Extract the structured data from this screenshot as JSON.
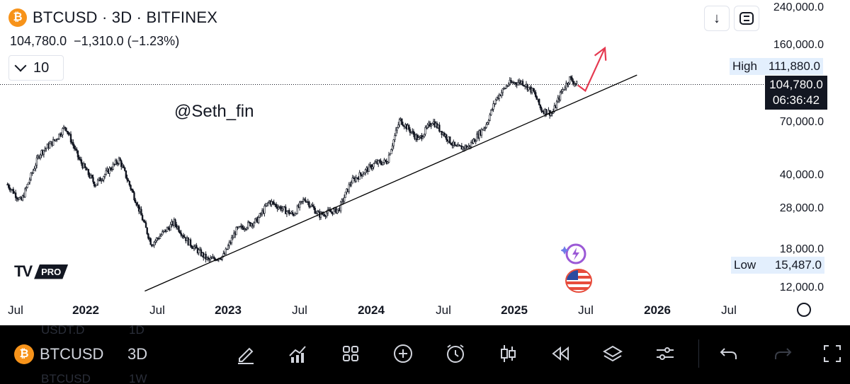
{
  "header": {
    "coin_symbol": "₿",
    "title": "BTCUSD · 3D · BITFINEX",
    "last_price": "104,780.0",
    "change": "−1,310.0 (−1.23%)",
    "interval_count": "10",
    "watermark": "@Seth_fin"
  },
  "top_buttons": {
    "download_icon": "↓",
    "fullscreen_icon": "fullscreen-icon"
  },
  "price_axis": {
    "labels": [
      "240,000.0",
      "160,000.0",
      "70,000.0",
      "40,000.0",
      "28,000.0",
      "18,000.0",
      "12,000.0"
    ],
    "high_tag": {
      "label": "High",
      "value": "111,880.0"
    },
    "low_tag": {
      "label": "Low",
      "value": "15,487.0"
    },
    "last_tag": {
      "value": "104,780.0",
      "countdown": "06:36:42"
    }
  },
  "time_axis": [
    {
      "label": "Jul",
      "bold": false
    },
    {
      "label": "2022",
      "bold": true
    },
    {
      "label": "Jul",
      "bold": false
    },
    {
      "label": "2023",
      "bold": true
    },
    {
      "label": "Jul",
      "bold": false
    },
    {
      "label": "2024",
      "bold": true
    },
    {
      "label": "Jul",
      "bold": false
    },
    {
      "label": "2025",
      "bold": true
    },
    {
      "label": "Jul",
      "bold": false
    },
    {
      "label": "2026",
      "bold": true
    },
    {
      "label": "Jul",
      "bold": false
    }
  ],
  "logo": {
    "mark": "TV",
    "tier": "PRO"
  },
  "toolbar": {
    "symbol": "BTCUSD",
    "interval": "3D",
    "ghost_top_left": "USDT.D",
    "ghost_top_right": "1D",
    "ghost_bottom_left": "BTCUSD",
    "ghost_bottom_right": "1W",
    "icons": [
      "pencil-icon",
      "chart-type-icon",
      "grid-icon",
      "plus-icon",
      "alarm-icon",
      "candles-icon",
      "replay-icon",
      "layers-icon",
      "settings-sliders-icon",
      "undo-icon",
      "redo-icon",
      "fullscreen-icon"
    ]
  },
  "colors": {
    "up": "#131722",
    "trendline": "#000000",
    "arrow": "#e53950",
    "btc": "#f7931a",
    "tag_bg": "#e3effd"
  },
  "chart_data": {
    "type": "candlestick",
    "symbol": "BTCUSD",
    "timeframe": "3D",
    "exchange": "BITFINEX",
    "y_scale": "log",
    "ylim": [
      11000,
      250000
    ],
    "x_range": [
      "2021-06-15",
      "2026-08-01"
    ],
    "last_price": 104780.0,
    "high": 111880.0,
    "low": 15487.0,
    "price_path": [
      {
        "date": "2021-06-15",
        "price": 36000
      },
      {
        "date": "2021-07-20",
        "price": 30000
      },
      {
        "date": "2021-09-05",
        "price": 50000
      },
      {
        "date": "2021-10-15",
        "price": 58000
      },
      {
        "date": "2021-11-10",
        "price": 67000
      },
      {
        "date": "2021-12-15",
        "price": 47000
      },
      {
        "date": "2022-01-25",
        "price": 36000
      },
      {
        "date": "2022-03-28",
        "price": 47000
      },
      {
        "date": "2022-05-10",
        "price": 30000
      },
      {
        "date": "2022-06-18",
        "price": 19000
      },
      {
        "date": "2022-08-15",
        "price": 24000
      },
      {
        "date": "2022-09-20",
        "price": 19500
      },
      {
        "date": "2022-11-10",
        "price": 16000
      },
      {
        "date": "2022-12-20",
        "price": 16800
      },
      {
        "date": "2023-01-20",
        "price": 22000
      },
      {
        "date": "2023-03-15",
        "price": 24500
      },
      {
        "date": "2023-04-15",
        "price": 30000
      },
      {
        "date": "2023-06-15",
        "price": 26000
      },
      {
        "date": "2023-07-15",
        "price": 31000
      },
      {
        "date": "2023-08-20",
        "price": 26000
      },
      {
        "date": "2023-10-10",
        "price": 27500
      },
      {
        "date": "2023-11-10",
        "price": 37000
      },
      {
        "date": "2024-01-10",
        "price": 45000
      },
      {
        "date": "2024-02-10",
        "price": 46000
      },
      {
        "date": "2024-03-14",
        "price": 72000
      },
      {
        "date": "2024-05-01",
        "price": 58000
      },
      {
        "date": "2024-06-05",
        "price": 71000
      },
      {
        "date": "2024-08-05",
        "price": 53000
      },
      {
        "date": "2024-09-06",
        "price": 54000
      },
      {
        "date": "2024-10-20",
        "price": 68000
      },
      {
        "date": "2024-11-15",
        "price": 90000
      },
      {
        "date": "2024-12-17",
        "price": 106000
      },
      {
        "date": "2025-01-20",
        "price": 108000
      },
      {
        "date": "2025-02-20",
        "price": 96000
      },
      {
        "date": "2025-03-10",
        "price": 80000
      },
      {
        "date": "2025-04-08",
        "price": 77000
      },
      {
        "date": "2025-05-01",
        "price": 97000
      },
      {
        "date": "2025-05-22",
        "price": 111880
      },
      {
        "date": "2025-06-10",
        "price": 104780
      }
    ],
    "annotations": [
      {
        "type": "trendline",
        "from": {
          "date": "2022-06-01",
          "price": 11500
        },
        "to": {
          "date": "2025-11-10",
          "price": 116000
        }
      },
      {
        "type": "arrow",
        "color": "#e53950",
        "points": [
          {
            "date": "2025-06-12",
            "price": 104000
          },
          {
            "date": "2025-07-01",
            "price": 98000
          },
          {
            "date": "2025-08-20",
            "price": 155000
          }
        ]
      },
      {
        "type": "hline",
        "style": "dotted",
        "price": 104780
      }
    ]
  }
}
